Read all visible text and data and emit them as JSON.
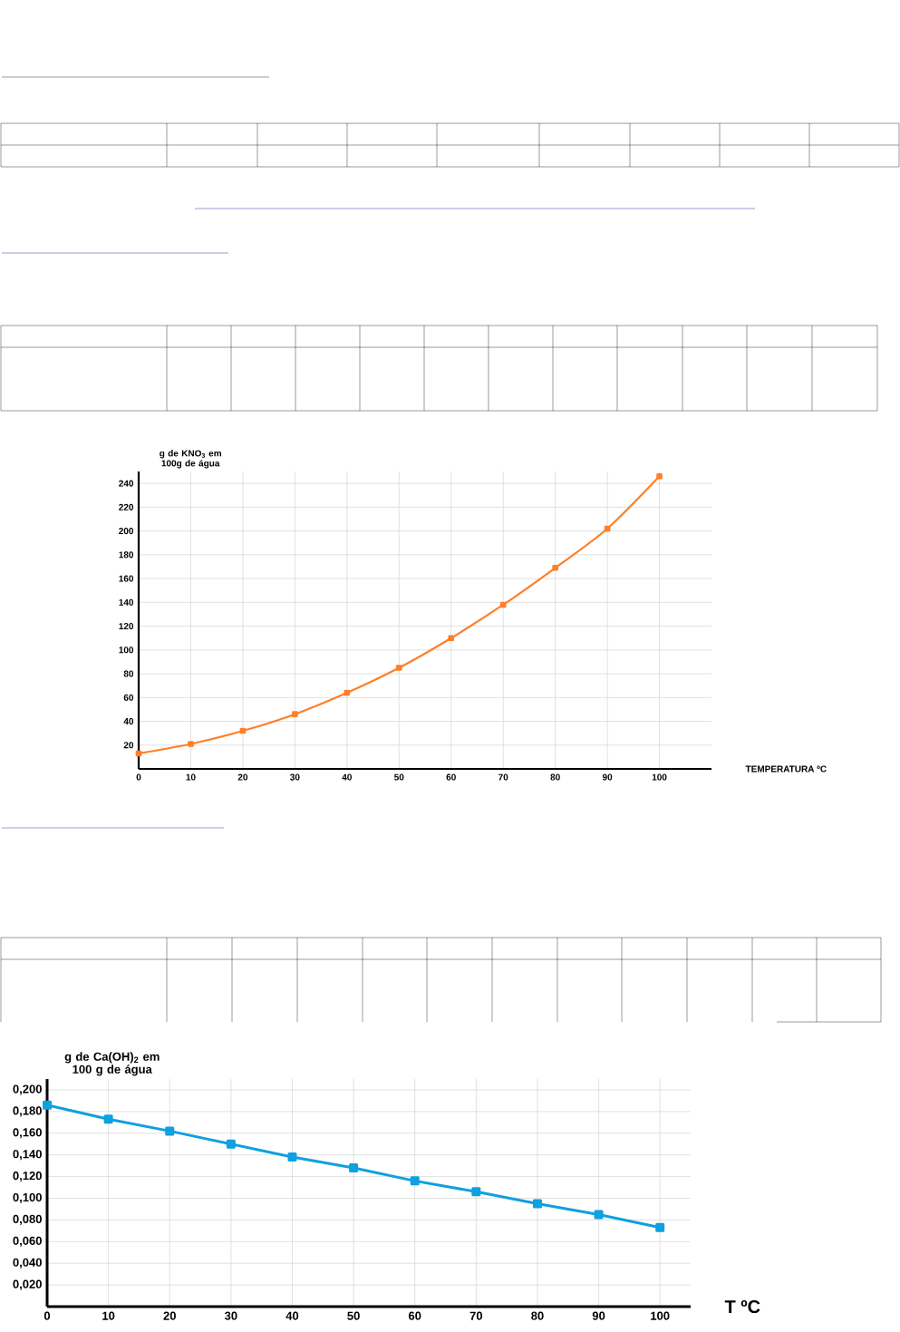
{
  "chart_data": [
    {
      "type": "line",
      "ylabel": "g de KNO$_{3}$ em 100g de água",
      "xlabel": "TEMPERATURA ºC",
      "x": [
        0,
        10,
        20,
        30,
        40,
        50,
        60,
        70,
        80,
        90,
        100
      ],
      "values": [
        13,
        21,
        32,
        46,
        64,
        85,
        110,
        138,
        169,
        202,
        246
      ],
      "color": "#ff7f27",
      "marker": "square",
      "line_style": "solid",
      "grid": true,
      "xlim": [
        0,
        110
      ],
      "ylim": [
        0,
        250
      ],
      "xticks": [
        0,
        10,
        20,
        30,
        40,
        50,
        60,
        70,
        80,
        90,
        100
      ],
      "yticks": [
        20,
        40,
        60,
        80,
        100,
        120,
        140,
        160,
        180,
        200,
        220,
        240
      ]
    },
    {
      "type": "line",
      "ylabel": "g de Ca(OH)$_{2}$ em 100 g de água",
      "xlabel": "T ºC",
      "x": [
        0,
        10,
        20,
        30,
        40,
        50,
        60,
        70,
        80,
        90,
        100
      ],
      "values": [
        0.186,
        0.173,
        0.162,
        0.15,
        0.138,
        0.128,
        0.116,
        0.106,
        0.095,
        0.085,
        0.073
      ],
      "color": "#0fa0e0",
      "marker": "square",
      "line_style": "solid",
      "grid": true,
      "xlim": [
        0,
        105
      ],
      "ylim": [
        0,
        0.21
      ],
      "xticks": [
        0,
        10,
        20,
        30,
        40,
        50,
        60,
        70,
        80,
        90,
        100
      ],
      "yticks": [
        {
          "value": 0.02,
          "label": "0,020"
        },
        {
          "value": 0.04,
          "label": "0,040"
        },
        {
          "value": 0.06,
          "label": "0,060"
        },
        {
          "value": 0.08,
          "label": "0,080"
        },
        {
          "value": 0.1,
          "label": "0,100"
        },
        {
          "value": 0.12,
          "label": "0,120"
        },
        {
          "value": 0.14,
          "label": "0,140"
        },
        {
          "value": 0.16,
          "label": "0,160"
        },
        {
          "value": 0.18,
          "label": "0,180"
        },
        {
          "value": 0.2,
          "label": "0,200"
        }
      ]
    }
  ]
}
